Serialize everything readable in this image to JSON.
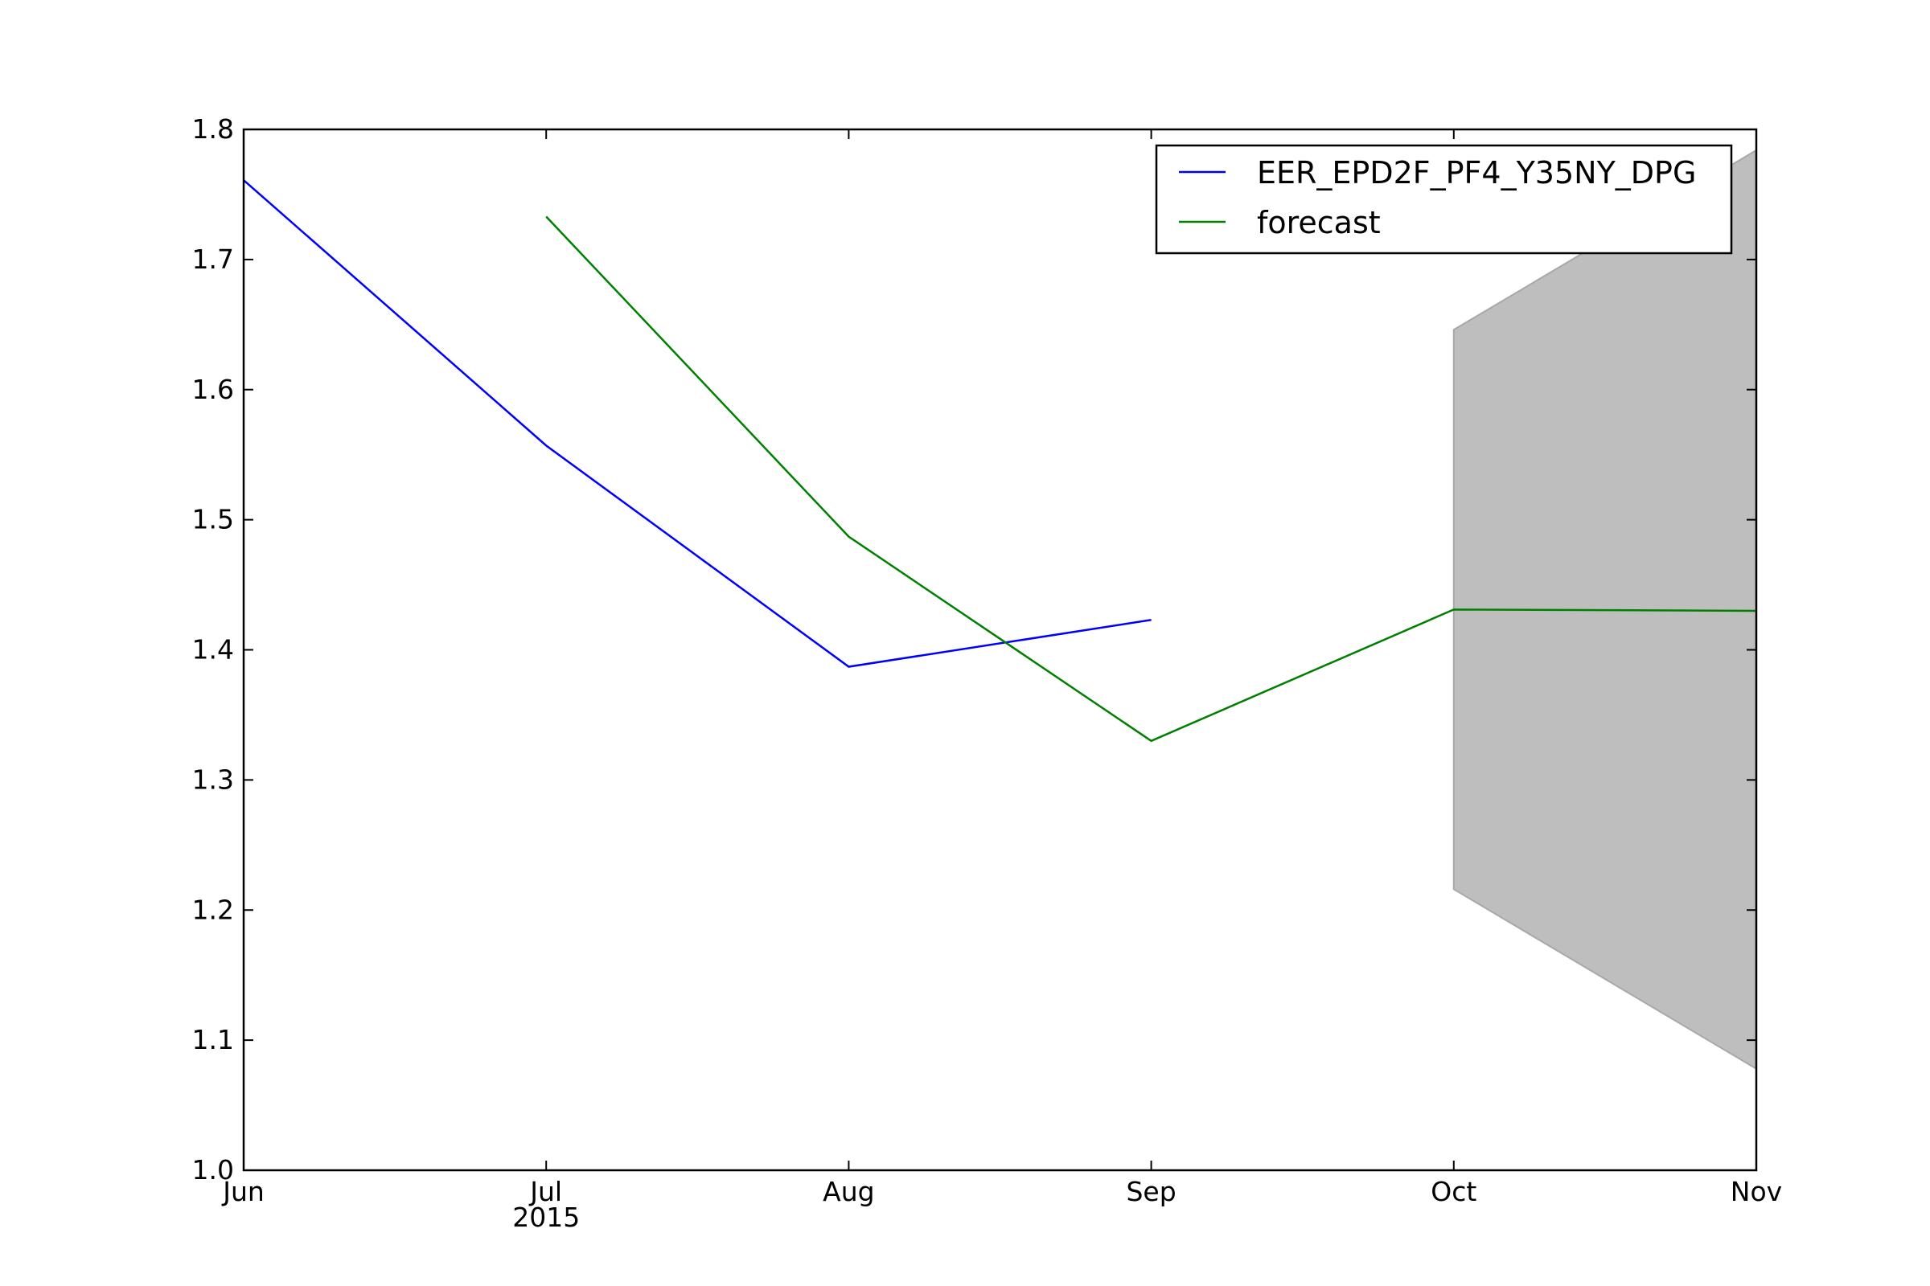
{
  "chart_data": {
    "type": "line",
    "x_ticks": [
      "Jun",
      "Jul",
      "Aug",
      "Sep",
      "Oct",
      "Nov"
    ],
    "x_year_label": "2015",
    "x": [
      "2015-06",
      "2015-07",
      "2015-08",
      "2015-09",
      "2015-10",
      "2015-11"
    ],
    "ylim": [
      1.0,
      1.8
    ],
    "y_ticks": [
      "1.0",
      "1.1",
      "1.2",
      "1.3",
      "1.4",
      "1.5",
      "1.6",
      "1.7",
      "1.8"
    ],
    "grid": false,
    "legend_position": "top-right",
    "series": [
      {
        "name": "EER_EPD2F_PF4_Y35NY_DPG",
        "color": "#0000ff",
        "points": [
          {
            "x": "2015-06",
            "y": 1.761
          },
          {
            "x": "2015-07",
            "y": 1.557
          },
          {
            "x": "2015-08",
            "y": 1.387
          },
          {
            "x": "2015-09",
            "y": 1.423
          }
        ]
      },
      {
        "name": "forecast",
        "color": "#008000",
        "points": [
          {
            "x": "2015-07",
            "y": 1.733
          },
          {
            "x": "2015-08",
            "y": 1.487
          },
          {
            "x": "2015-09",
            "y": 1.33
          },
          {
            "x": "2015-10",
            "y": 1.431
          },
          {
            "x": "2015-11",
            "y": 1.43
          }
        ]
      }
    ],
    "confidence_band": {
      "color": "#bebebe",
      "points": [
        {
          "x": "2015-10",
          "lower": 1.216,
          "upper": 1.646
        },
        {
          "x": "2015-11",
          "lower": 1.078,
          "upper": 1.784
        }
      ]
    }
  }
}
